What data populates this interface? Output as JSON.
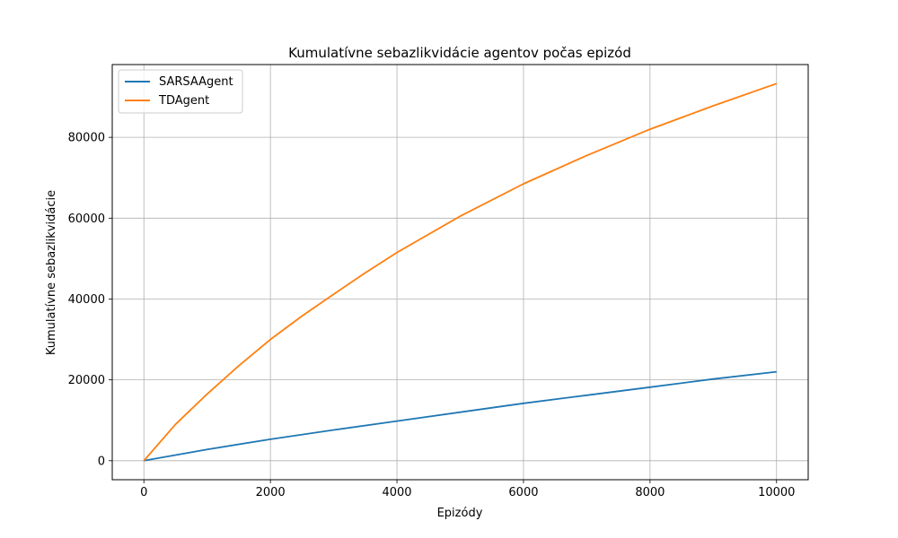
{
  "chart_data": {
    "type": "line",
    "title": "Kumulatívne sebazlikvidácie agentov počas epizód",
    "xlabel": "Epizódy",
    "ylabel": "Kumulatívne sebazlikvidácie",
    "xlim": [
      -500,
      10500
    ],
    "ylim": [
      -4700,
      98000
    ],
    "xticks": [
      0,
      2000,
      4000,
      6000,
      8000,
      10000
    ],
    "yticks": [
      0,
      20000,
      40000,
      60000,
      80000
    ],
    "grid": true,
    "legend_position": "upper left",
    "series": [
      {
        "name": "SARSAAgent",
        "color": "#1f77b4",
        "x": [
          0,
          1000,
          2000,
          3000,
          4000,
          5000,
          6000,
          7000,
          8000,
          9000,
          10000
        ],
        "y": [
          0,
          2800,
          5300,
          7600,
          9800,
          12000,
          14200,
          16200,
          18200,
          20200,
          22000
        ]
      },
      {
        "name": "TDAgent",
        "color": "#ff7f0e",
        "x": [
          0,
          500,
          1000,
          1500,
          2000,
          2500,
          3000,
          3500,
          4000,
          5000,
          6000,
          7000,
          8000,
          9000,
          10000
        ],
        "y": [
          0,
          9000,
          16500,
          23500,
          30000,
          35800,
          41200,
          46500,
          51500,
          60500,
          68500,
          75500,
          82000,
          87800,
          93300
        ]
      }
    ]
  }
}
